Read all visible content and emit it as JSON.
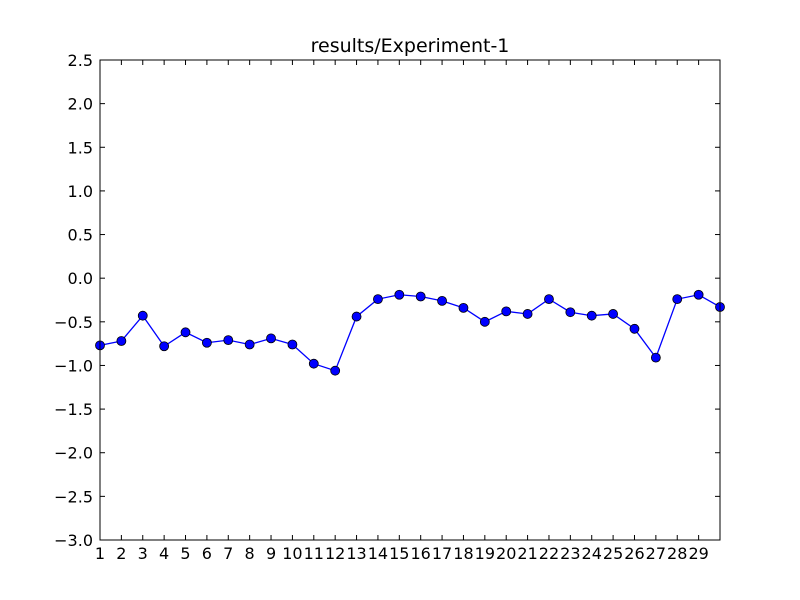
{
  "chart_data": {
    "type": "line",
    "title": "results/Experiment-1",
    "xlabel": "",
    "ylabel": "",
    "xlim": [
      1,
      30
    ],
    "ylim": [
      -3.0,
      2.5
    ],
    "yticks": [
      -3.0,
      -2.5,
      -2.0,
      -1.5,
      -1.0,
      -0.5,
      0.0,
      0.5,
      1.0,
      1.5,
      2.0,
      2.5
    ],
    "ytick_labels": [
      "−3.0",
      "−2.5",
      "−2.0",
      "−1.5",
      "−1.0",
      "−0.5",
      "0.0",
      "0.5",
      "1.0",
      "1.5",
      "2.0",
      "2.5"
    ],
    "xticks": [
      1,
      2,
      3,
      4,
      5,
      6,
      7,
      8,
      9,
      10,
      11,
      12,
      13,
      14,
      15,
      16,
      17,
      18,
      19,
      20,
      21,
      22,
      23,
      24,
      25,
      26,
      27,
      28,
      29
    ],
    "xtick_labels": [
      "1",
      "2",
      "3",
      "4",
      "5",
      "6",
      "7",
      "8",
      "9",
      "10",
      "11",
      "12",
      "13",
      "14",
      "15",
      "16",
      "17",
      "18",
      "19",
      "20",
      "21",
      "22",
      "23",
      "24",
      "25",
      "26",
      "27",
      "28",
      "29"
    ],
    "grid": false,
    "series": [
      {
        "color": "#0000ff",
        "marker": "circle",
        "x": [
          1,
          2,
          3,
          4,
          5,
          6,
          7,
          8,
          9,
          10,
          11,
          12,
          13,
          14,
          15,
          16,
          17,
          18,
          19,
          20,
          21,
          22,
          23,
          24,
          25,
          26,
          27,
          28,
          29,
          30
        ],
        "values": [
          -0.77,
          -0.72,
          -0.43,
          -0.78,
          -0.62,
          -0.74,
          -0.71,
          -0.76,
          -0.69,
          -0.76,
          -0.98,
          -1.06,
          -0.44,
          -0.24,
          -0.19,
          -0.21,
          -0.26,
          -0.34,
          -0.5,
          -0.38,
          -0.41,
          -0.24,
          -0.39,
          -0.43,
          -0.41,
          -0.58,
          -0.91,
          -0.24,
          -0.19,
          -0.33
        ]
      }
    ]
  }
}
